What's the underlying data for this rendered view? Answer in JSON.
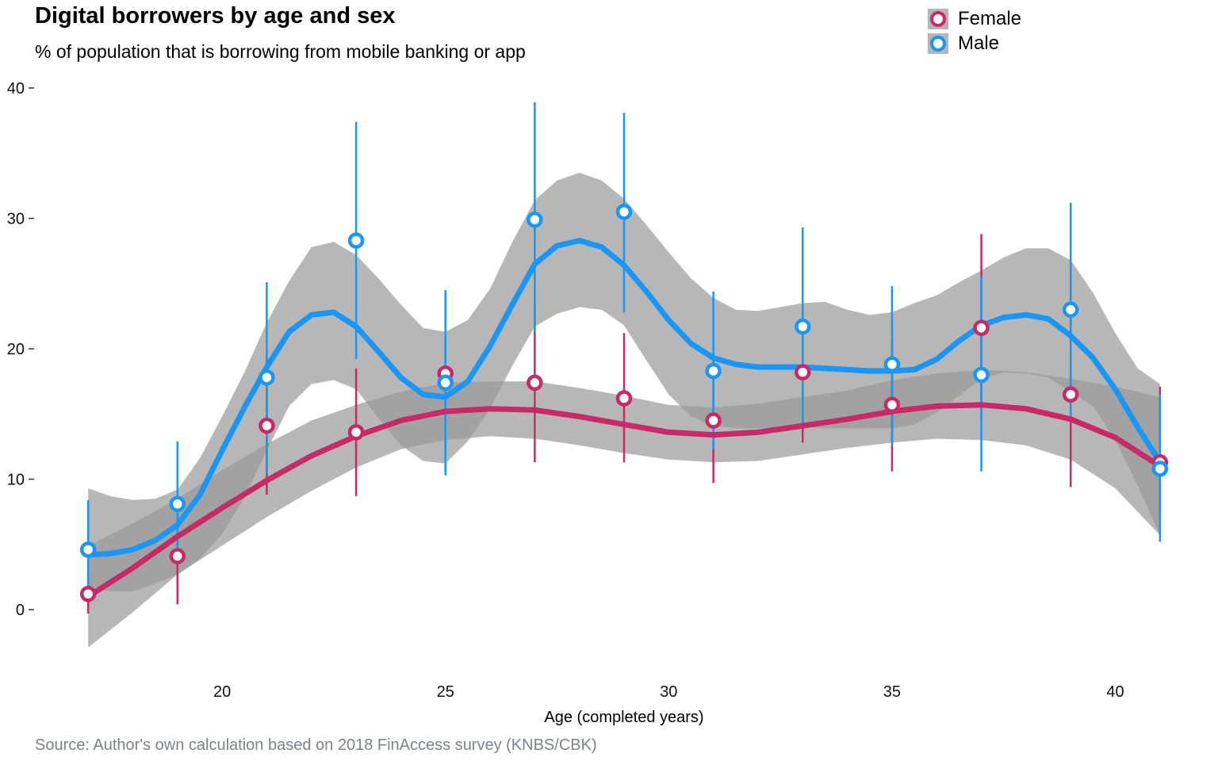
{
  "title": "Digital borrowers by age and sex",
  "subtitle": "% of population that is borrowing from mobile banking or app",
  "caption": "Source: Author's own calculation based on 2018 FinAccess survey (KNBS/CBK)",
  "legend": {
    "position": "top-right",
    "items": [
      "Female",
      "Male"
    ]
  },
  "colors": {
    "female": "#c72a66",
    "male": "#1a96f5",
    "ribbon": "#999999"
  },
  "chart_data": {
    "type": "scatter",
    "xlabel": "Age (completed years)",
    "ylabel": "",
    "xlim": [
      16.5,
      41.5
    ],
    "ylim": [
      -4,
      40
    ],
    "xticks": [
      20,
      25,
      30,
      35,
      40
    ],
    "yticks": [
      0,
      10,
      20,
      30,
      40
    ],
    "grid": false,
    "x": [
      17,
      19,
      21,
      23,
      25,
      27,
      29,
      31,
      33,
      35,
      37,
      39,
      41
    ],
    "series": [
      {
        "name": "Female",
        "values": [
          1.2,
          4.1,
          14.1,
          13.6,
          18.1,
          17.4,
          16.2,
          14.5,
          18.2,
          15.7,
          21.6,
          16.5,
          11.3
        ],
        "error_low": [
          -0.3,
          0.4,
          8.8,
          8.7,
          15.8,
          11.3,
          11.3,
          9.7,
          12.8,
          10.6,
          14.5,
          9.4,
          7.0
        ],
        "error_high": [
          2.8,
          7.8,
          19.4,
          18.5,
          20.5,
          23.6,
          21.2,
          19.4,
          23.5,
          20.8,
          28.8,
          23.6,
          17.1
        ],
        "smooth": {
          "x": [
            17,
            18,
            19,
            20,
            21,
            22,
            23,
            24,
            25,
            26,
            27,
            28,
            29,
            30,
            31,
            32,
            33,
            34,
            35,
            36,
            37,
            38,
            39,
            40,
            41
          ],
          "y": [
            1.0,
            3.2,
            5.6,
            7.8,
            9.9,
            11.8,
            13.3,
            14.5,
            15.2,
            15.4,
            15.3,
            14.8,
            14.2,
            13.6,
            13.4,
            13.6,
            14.1,
            14.6,
            15.2,
            15.6,
            15.7,
            15.4,
            14.6,
            13.2,
            11.0
          ],
          "ci_low": [
            -2.9,
            -0.2,
            2.7,
            4.9,
            7.1,
            9.1,
            10.9,
            12.3,
            13.0,
            13.3,
            13.1,
            12.6,
            12.0,
            11.5,
            11.3,
            11.4,
            11.9,
            12.4,
            12.8,
            13.1,
            13.0,
            12.6,
            11.5,
            9.3,
            5.7
          ],
          "ci_high": [
            4.9,
            6.6,
            8.5,
            10.7,
            12.7,
            14.5,
            15.7,
            16.7,
            17.4,
            17.5,
            17.5,
            17.0,
            16.4,
            15.7,
            15.5,
            15.8,
            16.3,
            16.8,
            17.6,
            18.1,
            18.4,
            18.2,
            17.7,
            17.1,
            16.3
          ]
        }
      },
      {
        "name": "Male",
        "values": [
          4.6,
          8.1,
          17.8,
          28.3,
          17.4,
          29.9,
          30.5,
          18.3,
          21.7,
          18.8,
          18.0,
          23.0,
          10.8
        ],
        "error_low": [
          0.9,
          4.1,
          10.4,
          19.2,
          10.3,
          21.3,
          22.8,
          12.3,
          14.2,
          12.6,
          10.6,
          14.7,
          5.2
        ],
        "error_high": [
          8.4,
          12.9,
          25.1,
          37.4,
          24.5,
          38.9,
          38.1,
          24.4,
          29.3,
          24.8,
          25.6,
          31.2,
          16.5
        ],
        "smooth": {
          "x": [
            17,
            17.5,
            18,
            18.5,
            19,
            19.5,
            20,
            20.5,
            21,
            21.5,
            22,
            22.5,
            23,
            23.5,
            24,
            24.5,
            25,
            25.5,
            26,
            26.5,
            27,
            27.5,
            28,
            28.5,
            29,
            29.5,
            30,
            30.5,
            31,
            31.5,
            32,
            32.5,
            33,
            33.5,
            34,
            34.5,
            35,
            35.5,
            36,
            36.5,
            37,
            37.5,
            38,
            38.5,
            39,
            39.5,
            40,
            40.5,
            41
          ],
          "y": [
            4.2,
            4.3,
            4.6,
            5.3,
            6.5,
            8.8,
            12.2,
            15.5,
            18.6,
            21.3,
            22.6,
            22.8,
            21.7,
            19.8,
            17.8,
            16.5,
            16.3,
            17.5,
            20.2,
            23.4,
            26.5,
            27.9,
            28.3,
            27.8,
            26.4,
            24.4,
            22.2,
            20.4,
            19.3,
            18.8,
            18.6,
            18.6,
            18.6,
            18.5,
            18.4,
            18.3,
            18.3,
            18.4,
            19.2,
            20.6,
            21.8,
            22.4,
            22.6,
            22.3,
            21.0,
            19.3,
            16.9,
            14.0,
            11.3
          ],
          "ci_low": [
            1.8,
            1.4,
            1.4,
            2.0,
            2.7,
            3.9,
            5.8,
            8.6,
            12.2,
            15.6,
            17.3,
            17.6,
            16.9,
            14.7,
            12.6,
            11.4,
            11.2,
            12.9,
            15.4,
            18.7,
            21.7,
            22.7,
            23.2,
            23.0,
            21.8,
            19.1,
            16.5,
            14.8,
            14.1,
            13.9,
            13.9,
            13.9,
            14.0,
            13.9,
            13.9,
            13.9,
            13.9,
            14.2,
            15.1,
            16.4,
            17.7,
            18.2,
            18.1,
            17.8,
            16.7,
            15.6,
            13.0,
            9.5,
            5.7
          ],
          "ci_high": [
            9.3,
            8.7,
            8.4,
            8.5,
            9.2,
            11.6,
            14.8,
            18.2,
            22.0,
            25.2,
            27.8,
            28.2,
            27.2,
            25.4,
            23.4,
            21.6,
            21.3,
            22.2,
            24.6,
            28.2,
            31.4,
            32.9,
            33.5,
            32.9,
            31.5,
            29.5,
            27.4,
            25.4,
            23.9,
            23.0,
            22.9,
            23.2,
            23.5,
            23.6,
            23.0,
            22.6,
            22.8,
            23.5,
            24.1,
            25.1,
            26.0,
            27.0,
            27.7,
            27.7,
            26.8,
            24.3,
            21.2,
            18.5,
            17.3
          ]
        }
      }
    ]
  }
}
